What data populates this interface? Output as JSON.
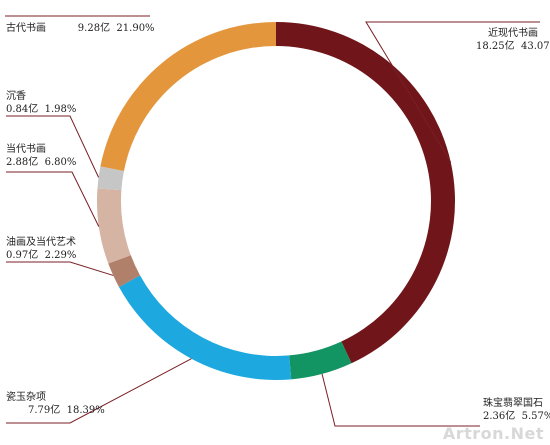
{
  "chart_data": {
    "type": "pie",
    "donut": true,
    "start": "top, clockwise",
    "unit": "亿",
    "slices": [
      {
        "name": "近现代书画",
        "value": 18.25,
        "value_text": "18.25亿",
        "pct": 43.07,
        "pct_text": "43.07%",
        "color": "#701519"
      },
      {
        "name": "珠宝翡翠国石",
        "value": 2.36,
        "value_text": "2.36亿",
        "pct": 5.57,
        "pct_text": "5.57%",
        "color": "#139463"
      },
      {
        "name": "瓷玉杂项",
        "value": 7.79,
        "value_text": "7.79亿",
        "pct": 18.39,
        "pct_text": "18.39%",
        "color": "#1ea8e0"
      },
      {
        "name": "油画及当代艺术",
        "value": 0.97,
        "value_text": "0.97亿",
        "pct": 2.29,
        "pct_text": "2.29%",
        "color": "#b0806a"
      },
      {
        "name": "当代书画",
        "value": 2.88,
        "value_text": "2.88亿",
        "pct": 6.8,
        "pct_text": "6.80%",
        "color": "#d6b4a4"
      },
      {
        "name": "沉香",
        "value": 0.84,
        "value_text": "0.84亿",
        "pct": 1.98,
        "pct_text": "1.98%",
        "color": "#c6c6c6"
      },
      {
        "name": "古代书画",
        "value": 9.28,
        "value_text": "9.28亿",
        "pct": 21.9,
        "pct_text": "21.90%",
        "color": "#e3963c"
      }
    ]
  },
  "watermark": "Artron.Net",
  "colors": {
    "leader_line": "#7a1f24",
    "text": "#222222"
  }
}
